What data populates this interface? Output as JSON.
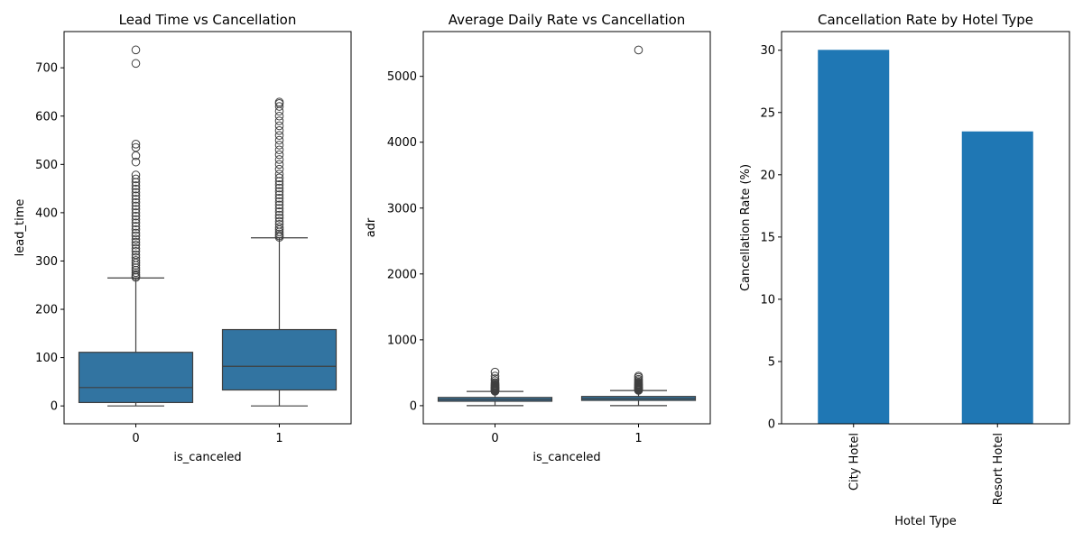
{
  "chart_data": [
    {
      "type": "box",
      "title": "Lead Time vs Cancellation",
      "xlabel": "is_canceled",
      "ylabel": "lead_time",
      "categories": [
        "0",
        "1"
      ],
      "ylim": [
        -37,
        775
      ],
      "yticks": [
        0,
        100,
        200,
        300,
        400,
        500,
        600,
        700
      ],
      "color": "#3274a1",
      "boxes": [
        {
          "category": "0",
          "whisker_low": 0,
          "q1": 7,
          "median": 38,
          "q3": 111,
          "whisker_high": 265,
          "outliers": [
            266,
            269,
            272,
            276,
            281,
            286,
            291,
            296,
            301,
            307,
            313,
            320,
            326,
            333,
            339,
            345,
            352,
            358,
            365,
            372,
            379,
            386,
            393,
            400,
            407,
            414,
            421,
            428,
            435,
            442,
            449,
            456,
            463,
            470,
            478,
            505,
            518,
            535,
            542,
            709,
            737
          ]
        },
        {
          "category": "1",
          "whisker_low": 0,
          "q1": 33,
          "median": 82,
          "q3": 158,
          "whisker_high": 348,
          "outliers": [
            349,
            352,
            356,
            360,
            365,
            370,
            376,
            382,
            389,
            395,
            402,
            409,
            416,
            423,
            430,
            437,
            444,
            451,
            458,
            465,
            472,
            480,
            490,
            500,
            510,
            520,
            530,
            540,
            550,
            560,
            570,
            580,
            590,
            600,
            610,
            620,
            626,
            629
          ]
        }
      ]
    },
    {
      "type": "box",
      "title": "Average Daily Rate vs Cancellation",
      "xlabel": "is_canceled",
      "ylabel": "adr",
      "categories": [
        "0",
        "1"
      ],
      "ylim": [
        -275,
        5680
      ],
      "yticks": [
        0,
        1000,
        2000,
        3000,
        4000,
        5000
      ],
      "color": "#3274a1",
      "boxes": [
        {
          "category": "0",
          "whisker_low": 0,
          "q1": 67,
          "median": 93,
          "q3": 125,
          "whisker_high": 216,
          "outliers": [
            218,
            225,
            232,
            240,
            248,
            256,
            264,
            272,
            280,
            290,
            300,
            310,
            320,
            335,
            350,
            380,
            410,
            450,
            510
          ]
        },
        {
          "category": "1",
          "whisker_low": 0,
          "q1": 80,
          "median": 105,
          "q3": 140,
          "whisker_high": 230,
          "outliers": [
            232,
            240,
            248,
            256,
            264,
            272,
            280,
            290,
            300,
            310,
            320,
            330,
            345,
            360,
            380,
            400,
            430,
            450,
            5400
          ]
        }
      ]
    },
    {
      "type": "bar",
      "title": "Cancellation Rate by Hotel Type",
      "xlabel": "Hotel Type",
      "ylabel": "Cancellation Rate (%)",
      "categories": [
        "City Hotel",
        "Resort Hotel"
      ],
      "values": [
        30.03,
        23.48
      ],
      "ylim": [
        0,
        31.5
      ],
      "yticks": [
        0,
        5,
        10,
        15,
        20,
        25,
        30
      ],
      "color": "#1f77b4"
    }
  ]
}
